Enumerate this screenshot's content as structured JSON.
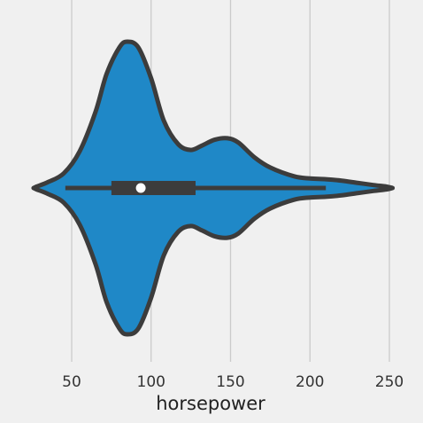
{
  "chart_data": {
    "type": "violin",
    "variable": "horsepower",
    "xlabel": "horsepower",
    "xlim": [
      15,
      260
    ],
    "xticks": [
      50,
      100,
      150,
      200,
      250
    ],
    "tick_labels": [
      "50",
      "100",
      "150",
      "200",
      "250"
    ],
    "grid": true,
    "orientation": "horizontal",
    "density_profile": [
      {
        "x": 26,
        "d": 0.0
      },
      {
        "x": 28,
        "d": 0.01
      },
      {
        "x": 35,
        "d": 0.04
      },
      {
        "x": 45,
        "d": 0.1
      },
      {
        "x": 55,
        "d": 0.25
      },
      {
        "x": 65,
        "d": 0.52
      },
      {
        "x": 72,
        "d": 0.78
      },
      {
        "x": 80,
        "d": 0.96
      },
      {
        "x": 85,
        "d": 1.0
      },
      {
        "x": 92,
        "d": 0.96
      },
      {
        "x": 100,
        "d": 0.75
      },
      {
        "x": 108,
        "d": 0.46
      },
      {
        "x": 117,
        "d": 0.3
      },
      {
        "x": 125,
        "d": 0.26
      },
      {
        "x": 132,
        "d": 0.29
      },
      {
        "x": 140,
        "d": 0.33
      },
      {
        "x": 148,
        "d": 0.34
      },
      {
        "x": 155,
        "d": 0.31
      },
      {
        "x": 165,
        "d": 0.21
      },
      {
        "x": 175,
        "d": 0.14
      },
      {
        "x": 190,
        "d": 0.08
      },
      {
        "x": 200,
        "d": 0.065
      },
      {
        "x": 210,
        "d": 0.06
      },
      {
        "x": 220,
        "d": 0.05
      },
      {
        "x": 230,
        "d": 0.035
      },
      {
        "x": 240,
        "d": 0.02
      },
      {
        "x": 248,
        "d": 0.01
      },
      {
        "x": 252,
        "d": 0.0
      }
    ],
    "box": {
      "whisker_low": 46,
      "q1": 75,
      "median": 93.5,
      "q3": 128,
      "whisker_high": 210
    },
    "colors": {
      "violin_fill": "#1f88c7",
      "outline": "#3c3c3c",
      "median_marker": "#ffffff",
      "grid": "#cbcbcb",
      "background": "#f0f0f0"
    }
  }
}
